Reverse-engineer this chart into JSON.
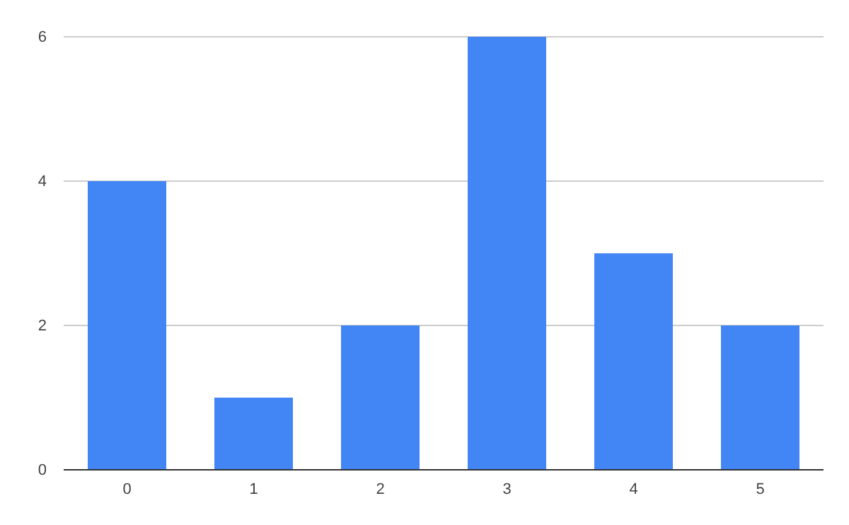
{
  "chart_data": {
    "type": "bar",
    "categories": [
      "0",
      "1",
      "2",
      "3",
      "4",
      "5"
    ],
    "values": [
      4,
      1,
      2,
      6,
      3,
      2
    ],
    "color": "#4285f4",
    "ylim": [
      0,
      6
    ],
    "yticks": [
      0,
      2,
      4,
      6
    ],
    "grid": "y"
  }
}
